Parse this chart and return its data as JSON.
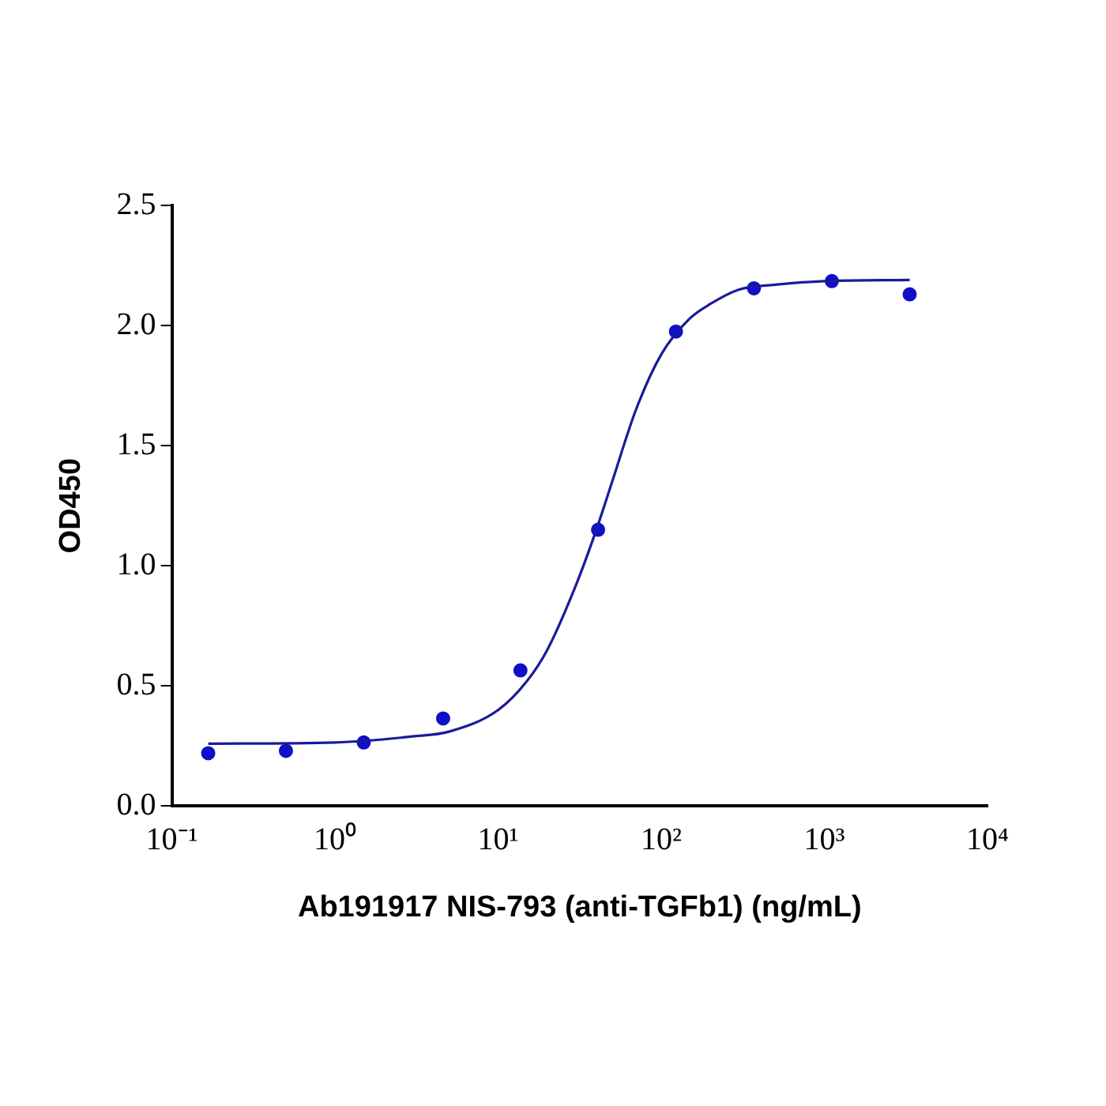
{
  "chart_data": {
    "type": "scatter",
    "xlabel": "Ab191917 NIS-793 (anti-TGFb1) (ng/mL)",
    "ylabel": "OD450",
    "log": "x",
    "grid": false,
    "legend": false,
    "xlim": [
      0.1,
      10000
    ],
    "xticks": [
      {
        "value": 0.1,
        "label": "10⁻¹"
      },
      {
        "value": 1,
        "label": "10⁰"
      },
      {
        "value": 10,
        "label": "10¹"
      },
      {
        "value": 100,
        "label": "10²"
      },
      {
        "value": 1000,
        "label": "10³"
      },
      {
        "value": 10000,
        "label": "10⁴"
      }
    ],
    "ylim": [
      0,
      2.5
    ],
    "yticks": [
      {
        "value": 0,
        "label": "0.0"
      },
      {
        "value": 0.5,
        "label": "0.5"
      },
      {
        "value": 1,
        "label": "1.0"
      },
      {
        "value": 1.5,
        "label": "1.5"
      },
      {
        "value": 2,
        "label": "2.0"
      },
      {
        "value": 2.5,
        "label": "2.5"
      }
    ],
    "series": [
      {
        "marker": "circle",
        "color": "#1010c8",
        "x": [
          0.167,
          0.5,
          1.5,
          4.6,
          13.7,
          41,
          123,
          370,
          1111,
          3333
        ],
        "values": [
          0.22,
          0.23,
          0.265,
          0.365,
          0.565,
          1.15,
          1.975,
          2.155,
          2.185,
          2.13
        ]
      },
      {
        "type": "line",
        "marker": "none",
        "line_style": "solid",
        "color": "#1a1a9c",
        "x": [
          0.167,
          1,
          3,
          5,
          10,
          15,
          20,
          30,
          40,
          50,
          70,
          100,
          150,
          200,
          300,
          500,
          1000,
          3333
        ],
        "values": [
          0.26,
          0.265,
          0.29,
          0.31,
          0.4,
          0.52,
          0.65,
          0.92,
          1.15,
          1.35,
          1.65,
          1.88,
          2.03,
          2.09,
          2.15,
          2.17,
          2.185,
          2.19
        ]
      }
    ]
  }
}
